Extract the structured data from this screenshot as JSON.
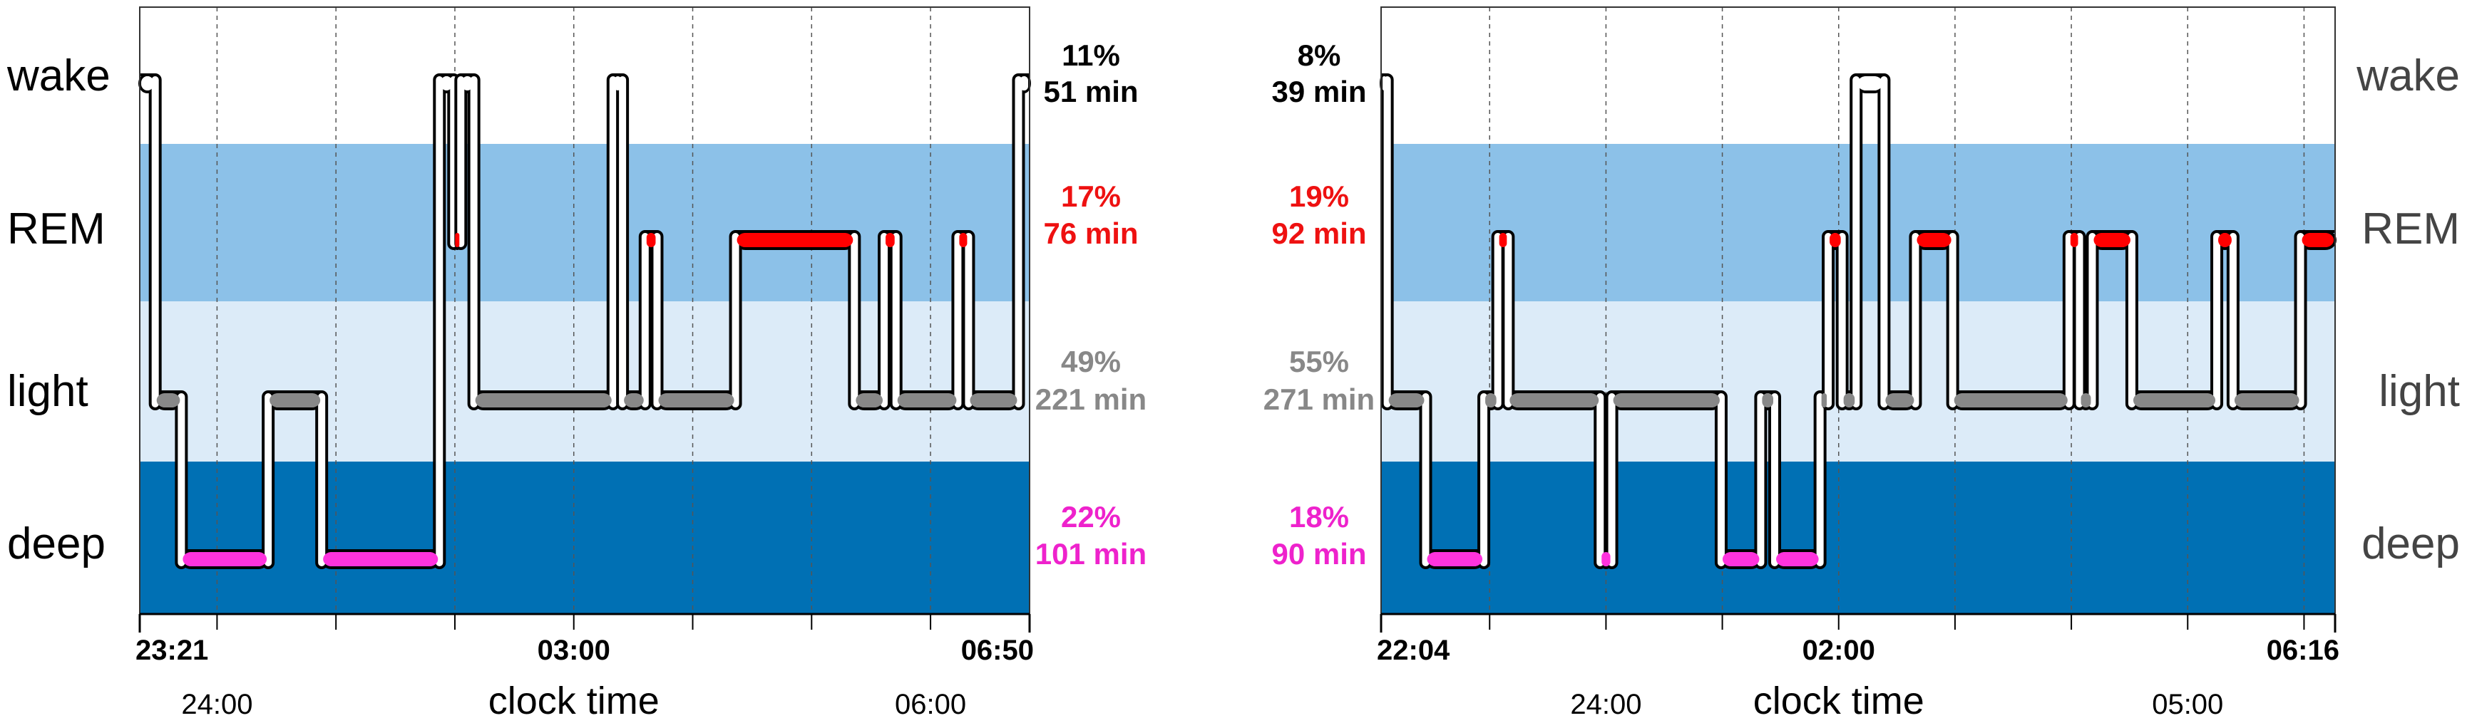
{
  "colors": {
    "wake_band": "#ffffff",
    "rem_band": "#8cc1e8",
    "light_band": "#dcebf8",
    "deep_band": "#0070b4",
    "wake_text": "#000000",
    "rem_text": "#ee1111",
    "light_text": "#888888",
    "deep_text": "#ee22cc",
    "rem_fill": "#ff0000",
    "light_fill": "#888888",
    "deep_fill": "#ff33dd",
    "wake_fill": "#ffffff"
  },
  "chart_data": [
    {
      "type": "line",
      "x_unit": "clock time (hours since midnight of first day)",
      "xlabel": "clock time",
      "ylabel": "",
      "title": "",
      "stages": [
        "wake",
        "REM",
        "light",
        "deep"
      ],
      "xlim": [
        -0.65,
        6.833
      ],
      "start_label": "23:21",
      "end_label": "06:50",
      "bold_ticks": [
        {
          "x": 3.0,
          "label": "03:00"
        }
      ],
      "regular_ticks": [
        {
          "x": 0.0,
          "label": "24:00"
        },
        {
          "x": 6.0,
          "label": "06:00"
        }
      ],
      "minor_ticks": [
        0.0,
        1.0,
        2.0,
        3.0,
        4.0,
        5.0,
        6.0
      ],
      "label_side": "left",
      "stats_side": "right",
      "stats": [
        {
          "stage": "wake",
          "pct": "11%",
          "min": "51 min"
        },
        {
          "stage": "REM",
          "pct": "17%",
          "min": "76 min"
        },
        {
          "stage": "light",
          "pct": "49%",
          "min": "221 min"
        },
        {
          "stage": "deep",
          "pct": "22%",
          "min": "101 min"
        }
      ],
      "segments": [
        {
          "stage": "wake",
          "start": -0.65,
          "end": -0.52
        },
        {
          "stage": "light",
          "start": -0.52,
          "end": -0.3
        },
        {
          "stage": "deep",
          "start": -0.3,
          "end": 0.43
        },
        {
          "stage": "light",
          "start": 0.43,
          "end": 0.88
        },
        {
          "stage": "deep",
          "start": 0.88,
          "end": 1.87
        },
        {
          "stage": "wake",
          "start": 1.87,
          "end": 1.99
        },
        {
          "stage": "REM",
          "start": 1.99,
          "end": 2.05
        },
        {
          "stage": "wake",
          "start": 2.05,
          "end": 2.16
        },
        {
          "stage": "light",
          "start": 2.16,
          "end": 3.33
        },
        {
          "stage": "wake",
          "start": 3.33,
          "end": 3.41
        },
        {
          "stage": "light",
          "start": 3.41,
          "end": 3.6
        },
        {
          "stage": "REM",
          "start": 3.6,
          "end": 3.7
        },
        {
          "stage": "light",
          "start": 3.7,
          "end": 4.36
        },
        {
          "stage": "REM",
          "start": 4.36,
          "end": 5.36
        },
        {
          "stage": "light",
          "start": 5.36,
          "end": 5.61
        },
        {
          "stage": "REM",
          "start": 5.61,
          "end": 5.71
        },
        {
          "stage": "light",
          "start": 5.71,
          "end": 6.23
        },
        {
          "stage": "REM",
          "start": 6.23,
          "end": 6.32
        },
        {
          "stage": "light",
          "start": 6.32,
          "end": 6.74
        },
        {
          "stage": "wake",
          "start": 6.74,
          "end": 6.833
        }
      ]
    },
    {
      "type": "line",
      "x_unit": "clock time (hours since midnight of first day)",
      "xlabel": "clock time",
      "ylabel": "",
      "title": "",
      "stages": [
        "wake",
        "REM",
        "light",
        "deep"
      ],
      "xlim": [
        -1.933,
        6.267
      ],
      "start_label": "22:04",
      "end_label": "06:16",
      "bold_ticks": [
        {
          "x": 2.0,
          "label": "02:00"
        }
      ],
      "regular_ticks": [
        {
          "x": 0.0,
          "label": "24:00"
        },
        {
          "x": 5.0,
          "label": "05:00"
        }
      ],
      "minor_ticks": [
        -1.0,
        0.0,
        1.0,
        2.0,
        3.0,
        4.0,
        5.0,
        6.0
      ],
      "label_side": "right",
      "stats_side": "left",
      "stats": [
        {
          "stage": "wake",
          "pct": "8%",
          "min": "39 min"
        },
        {
          "stage": "REM",
          "pct": "19%",
          "min": "92 min"
        },
        {
          "stage": "light",
          "pct": "55%",
          "min": "271 min"
        },
        {
          "stage": "deep",
          "pct": "18%",
          "min": "90 min"
        }
      ],
      "segments": [
        {
          "stage": "wake",
          "start": -1.933,
          "end": -1.88
        },
        {
          "stage": "light",
          "start": -1.88,
          "end": -1.55
        },
        {
          "stage": "deep",
          "start": -1.55,
          "end": -1.05
        },
        {
          "stage": "light",
          "start": -1.05,
          "end": -0.93
        },
        {
          "stage": "REM",
          "start": -0.93,
          "end": -0.84
        },
        {
          "stage": "light",
          "start": -0.84,
          "end": -0.05
        },
        {
          "stage": "deep",
          "start": -0.05,
          "end": 0.05
        },
        {
          "stage": "light",
          "start": 0.05,
          "end": 0.99
        },
        {
          "stage": "deep",
          "start": 0.99,
          "end": 1.33
        },
        {
          "stage": "light",
          "start": 1.33,
          "end": 1.45
        },
        {
          "stage": "deep",
          "start": 1.45,
          "end": 1.84
        },
        {
          "stage": "light",
          "start": 1.84,
          "end": 1.91
        },
        {
          "stage": "REM",
          "start": 1.91,
          "end": 2.03
        },
        {
          "stage": "light",
          "start": 2.03,
          "end": 2.15
        },
        {
          "stage": "wake",
          "start": 2.15,
          "end": 2.39
        },
        {
          "stage": "light",
          "start": 2.39,
          "end": 2.66
        },
        {
          "stage": "REM",
          "start": 2.66,
          "end": 2.98
        },
        {
          "stage": "light",
          "start": 2.98,
          "end": 3.98
        },
        {
          "stage": "REM",
          "start": 3.98,
          "end": 4.07
        },
        {
          "stage": "light",
          "start": 4.07,
          "end": 4.18
        },
        {
          "stage": "REM",
          "start": 4.18,
          "end": 4.52
        },
        {
          "stage": "light",
          "start": 4.52,
          "end": 5.25
        },
        {
          "stage": "REM",
          "start": 5.25,
          "end": 5.39
        },
        {
          "stage": "light",
          "start": 5.39,
          "end": 5.97
        },
        {
          "stage": "REM",
          "start": 5.97,
          "end": 6.267
        }
      ]
    }
  ]
}
